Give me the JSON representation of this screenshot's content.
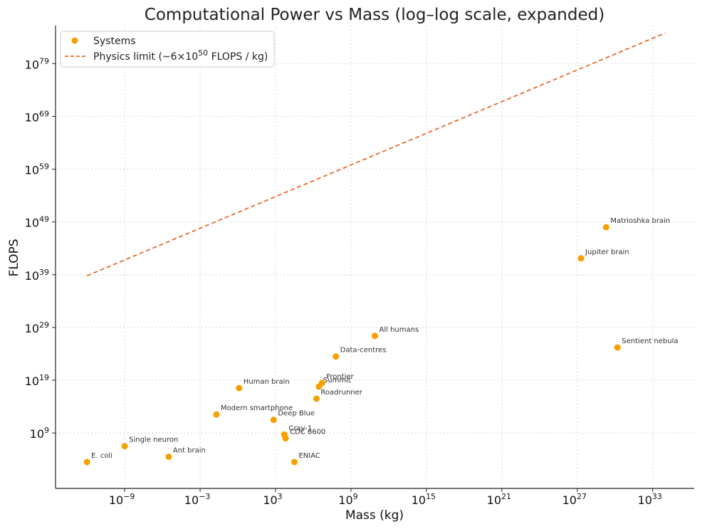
{
  "chart_data": {
    "type": "scatter",
    "title": "Computational Power vs Mass (log–log scale, expanded)",
    "xlabel": "Mass (kg)",
    "ylabel": "FLOPS",
    "x_scale": "log10",
    "y_scale": "log10",
    "xlim_exp": [
      -14.5,
      36.3
    ],
    "ylim_exp": [
      -1.5,
      86.2
    ],
    "x_ticks": [
      {
        "base": "10",
        "exp": "−9",
        "value_exp": -9
      },
      {
        "base": "10",
        "exp": "−3",
        "value_exp": -3
      },
      {
        "base": "10",
        "exp": "3",
        "value_exp": 3
      },
      {
        "base": "10",
        "exp": "9",
        "value_exp": 9
      },
      {
        "base": "10",
        "exp": "15",
        "value_exp": 15
      },
      {
        "base": "10",
        "exp": "21",
        "value_exp": 21
      },
      {
        "base": "10",
        "exp": "27",
        "value_exp": 27
      },
      {
        "base": "10",
        "exp": "33",
        "value_exp": 33
      }
    ],
    "y_ticks": [
      {
        "base": "10",
        "exp": "9",
        "value_exp": 9
      },
      {
        "base": "10",
        "exp": "19",
        "value_exp": 19
      },
      {
        "base": "10",
        "exp": "29",
        "value_exp": 29
      },
      {
        "base": "10",
        "exp": "39",
        "value_exp": 39
      },
      {
        "base": "10",
        "exp": "49",
        "value_exp": 49
      },
      {
        "base": "10",
        "exp": "59",
        "value_exp": 59
      },
      {
        "base": "10",
        "exp": "69",
        "value_exp": 69
      },
      {
        "base": "10",
        "exp": "79",
        "value_exp": 79
      }
    ],
    "grid": true,
    "legend_position": "top-left",
    "legend": {
      "systems": "Systems",
      "limit_prefix": "Physics limit (~6×10",
      "limit_exp": "50",
      "limit_suffix": " FLOPS / kg)"
    },
    "series": [
      {
        "name": "Systems",
        "color": "#f5a000",
        "points": [
          {
            "label": "E. coli",
            "log_mass": -12,
            "log_flops": 3.5
          },
          {
            "label": "Single neuron",
            "log_mass": -9,
            "log_flops": 6.5
          },
          {
            "label": "Ant brain",
            "log_mass": -5.5,
            "log_flops": 4.5
          },
          {
            "label": "Modern smartphone",
            "log_mass": -1.7,
            "log_flops": 12.5
          },
          {
            "label": "Human brain",
            "log_mass": 0.1,
            "log_flops": 17.5
          },
          {
            "label": "Deep Blue",
            "log_mass": 2.85,
            "log_flops": 11.5
          },
          {
            "label": "Cray-1",
            "log_mass": 3.7,
            "log_flops": 8.7
          },
          {
            "label": "CDC 6600",
            "log_mass": 3.8,
            "log_flops": 8
          },
          {
            "label": "ENIAC",
            "log_mass": 4.5,
            "log_flops": 3.5
          },
          {
            "label": "Roadrunner",
            "log_mass": 6.25,
            "log_flops": 15.5
          },
          {
            "label": "Summit",
            "log_mass": 6.45,
            "log_flops": 17.8
          },
          {
            "label": "Frontier",
            "log_mass": 6.7,
            "log_flops": 18.5
          },
          {
            "label": "Data-centres",
            "log_mass": 7.8,
            "log_flops": 23.5
          },
          {
            "label": "All humans",
            "log_mass": 10.9,
            "log_flops": 27.4
          },
          {
            "label": "Jupiter brain",
            "log_mass": 27.3,
            "log_flops": 42.1
          },
          {
            "label": "Matrioshka brain",
            "log_mass": 29.3,
            "log_flops": 48
          },
          {
            "label": "Sentient nebula",
            "log_mass": 30.2,
            "log_flops": 25.2
          }
        ]
      },
      {
        "name": "Physics limit (~6×10⁵⁰ FLOPS / kg)",
        "color": "#e8692a",
        "line_style": "dashed",
        "x_exp": [
          -12,
          34
        ],
        "y_exp": [
          38.8,
          84.8
        ]
      }
    ]
  }
}
